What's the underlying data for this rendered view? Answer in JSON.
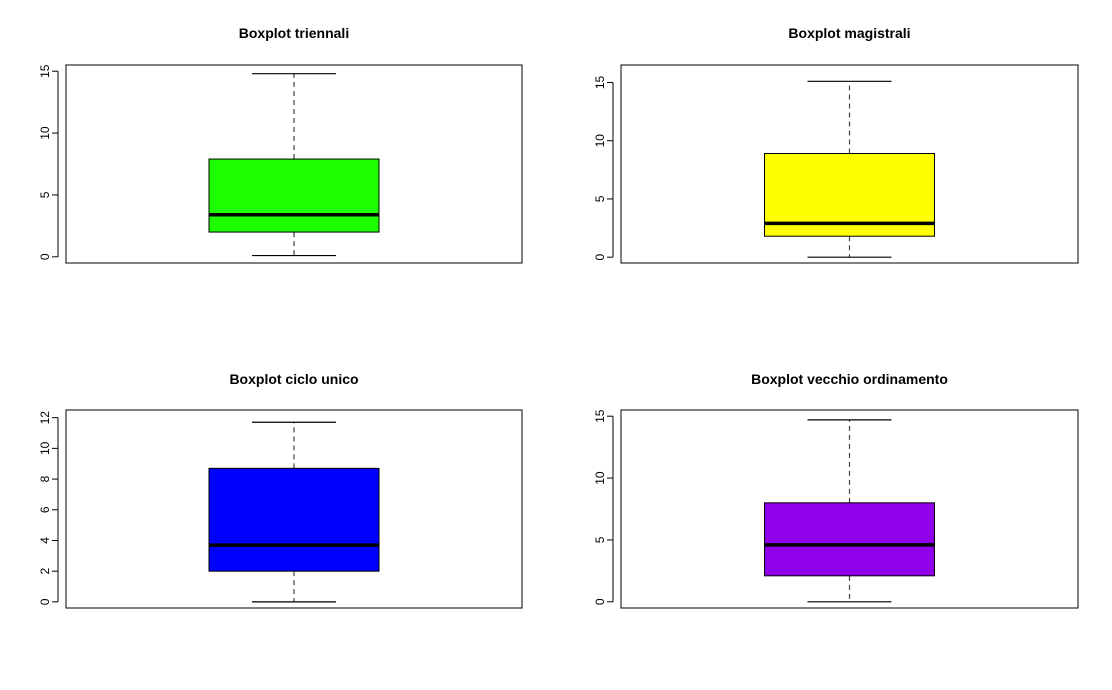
{
  "chart_data": [
    {
      "type": "boxplot",
      "title": "Boxplot triennali",
      "fill": "#1eff00",
      "yticks": [
        0,
        5,
        10,
        15
      ],
      "ylim": [
        -0.5,
        15.5
      ],
      "stats": {
        "min": 0.1,
        "q1": 2.0,
        "median": 3.4,
        "q3": 7.9,
        "max": 14.8
      }
    },
    {
      "type": "boxplot",
      "title": "Boxplot magistrali",
      "fill": "#ffff00",
      "yticks": [
        0,
        5,
        10,
        15
      ],
      "ylim": [
        -0.5,
        16.5
      ],
      "stats": {
        "min": 0.0,
        "q1": 1.8,
        "median": 2.9,
        "q3": 8.9,
        "max": 15.1
      }
    },
    {
      "type": "boxplot",
      "title": "Boxplot ciclo unico",
      "fill": "#0000ff",
      "yticks": [
        0,
        2,
        4,
        6,
        8,
        10,
        12
      ],
      "ylim": [
        -0.4,
        12.5
      ],
      "stats": {
        "min": 0.0,
        "q1": 2.0,
        "median": 3.7,
        "q3": 8.7,
        "max": 11.7
      }
    },
    {
      "type": "boxplot",
      "title": "Boxplot vecchio ordinamento",
      "fill": "#9000e8",
      "yticks": [
        0,
        5,
        10,
        15
      ],
      "ylim": [
        -0.5,
        15.5
      ],
      "stats": {
        "min": 0.0,
        "q1": 2.1,
        "median": 4.6,
        "q3": 8.0,
        "max": 14.7
      }
    }
  ]
}
